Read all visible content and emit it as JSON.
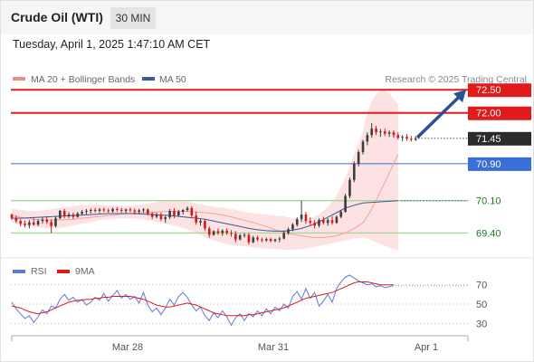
{
  "header": {
    "title": "Crude Oil (WTI)",
    "timeframe": "30 MIN",
    "datetime": "Tuesday, April 1, 2025 1:47:10 AM CET"
  },
  "legend": {
    "items": [
      {
        "label": "MA 20 + Bollinger Bands",
        "color": "#f08c86"
      },
      {
        "label": "MA 50",
        "color": "#3a5b97"
      }
    ],
    "copyright": "Research © 2025 Trading Central"
  },
  "rsi_legend": {
    "items": [
      {
        "label": "RSI",
        "color": "#5b7bd5"
      },
      {
        "label": "9MA",
        "color": "#e01b1b"
      }
    ]
  },
  "colors": {
    "resistance": "#e01b1b",
    "pivot": "#3a6ed8",
    "support": "#a8d5a0",
    "support_text": "#1e7a1e",
    "last_price_bg": "#2b2b2b",
    "candle_up": "#3d3d3d",
    "candle_down": "#d21a1a",
    "bollinger_fill": "#fbd8d8",
    "arrow": "#2a5293"
  },
  "chart_data": [
    {
      "type": "candlestick",
      "title": "Crude Oil (WTI)",
      "timeframe": "30 MIN",
      "x_labels": [
        "Mar 28",
        "Mar 31",
        "Apr 1"
      ],
      "ylim": [
        68.9,
        72.7
      ],
      "price_levels": [
        {
          "value": 72.5,
          "label": "72.50",
          "role": "resistance"
        },
        {
          "value": 72.0,
          "label": "72.00",
          "role": "resistance"
        },
        {
          "value": 71.45,
          "label": "71.45",
          "role": "last"
        },
        {
          "value": 70.9,
          "label": "70.90",
          "role": "pivot"
        },
        {
          "value": 70.1,
          "label": "70.10",
          "role": "support"
        },
        {
          "value": 69.4,
          "label": "69.40",
          "role": "support"
        }
      ],
      "ohlc": [
        [
          69.8,
          69.82,
          69.68,
          69.72
        ],
        [
          69.72,
          69.78,
          69.62,
          69.66
        ],
        [
          69.66,
          69.7,
          69.54,
          69.6
        ],
        [
          69.6,
          69.67,
          69.52,
          69.57
        ],
        [
          69.57,
          69.68,
          69.5,
          69.63
        ],
        [
          69.63,
          69.72,
          69.56,
          69.58
        ],
        [
          69.58,
          69.7,
          69.55,
          69.66
        ],
        [
          69.66,
          69.74,
          69.6,
          69.69
        ],
        [
          69.69,
          69.76,
          69.6,
          69.64
        ],
        [
          69.64,
          69.7,
          69.4,
          69.55
        ],
        [
          69.55,
          69.76,
          69.52,
          69.72
        ],
        [
          69.72,
          69.9,
          69.7,
          69.88
        ],
        [
          69.88,
          69.92,
          69.72,
          69.76
        ],
        [
          69.76,
          69.85,
          69.72,
          69.8
        ],
        [
          69.8,
          69.84,
          69.7,
          69.75
        ],
        [
          69.75,
          69.86,
          69.73,
          69.82
        ],
        [
          69.82,
          69.9,
          69.78,
          69.86
        ],
        [
          69.86,
          69.92,
          69.8,
          69.88
        ],
        [
          69.88,
          69.93,
          69.82,
          69.9
        ],
        [
          69.9,
          69.94,
          69.84,
          69.88
        ],
        [
          69.88,
          69.94,
          69.83,
          69.91
        ],
        [
          69.91,
          69.95,
          69.85,
          69.89
        ],
        [
          69.89,
          69.93,
          69.84,
          69.87
        ],
        [
          69.87,
          69.95,
          69.84,
          69.92
        ],
        [
          69.92,
          69.96,
          69.86,
          69.9
        ],
        [
          69.9,
          69.94,
          69.84,
          69.88
        ],
        [
          69.88,
          69.93,
          69.83,
          69.91
        ],
        [
          69.91,
          69.95,
          69.85,
          69.89
        ],
        [
          69.89,
          69.93,
          69.8,
          69.86
        ],
        [
          69.86,
          69.92,
          69.82,
          69.89
        ],
        [
          69.89,
          69.94,
          69.84,
          69.91
        ],
        [
          69.91,
          69.93,
          69.78,
          69.82
        ],
        [
          69.82,
          69.86,
          69.7,
          69.75
        ],
        [
          69.75,
          69.84,
          69.72,
          69.8
        ],
        [
          69.8,
          69.84,
          69.66,
          69.7
        ],
        [
          69.7,
          69.78,
          69.62,
          69.74
        ],
        [
          69.74,
          69.92,
          69.7,
          69.88
        ],
        [
          69.88,
          69.94,
          69.72,
          69.78
        ],
        [
          69.78,
          69.9,
          69.76,
          69.86
        ],
        [
          69.86,
          69.92,
          69.8,
          69.9
        ],
        [
          69.9,
          69.98,
          69.86,
          69.94
        ],
        [
          69.94,
          69.98,
          69.72,
          69.78
        ],
        [
          69.78,
          69.86,
          69.58,
          69.63
        ],
        [
          69.63,
          69.7,
          69.56,
          69.66
        ],
        [
          69.66,
          69.7,
          69.45,
          69.5
        ],
        [
          69.5,
          69.54,
          69.3,
          69.36
        ],
        [
          69.36,
          69.46,
          69.34,
          69.44
        ],
        [
          69.44,
          69.5,
          69.36,
          69.4
        ],
        [
          69.4,
          69.48,
          69.34,
          69.45
        ],
        [
          69.45,
          69.5,
          69.36,
          69.4
        ],
        [
          69.4,
          69.46,
          69.32,
          69.38
        ],
        [
          69.38,
          69.44,
          69.2,
          69.26
        ],
        [
          69.26,
          69.38,
          69.24,
          69.35
        ],
        [
          69.35,
          69.4,
          69.3,
          69.36
        ],
        [
          69.36,
          69.4,
          69.15,
          69.2
        ],
        [
          69.2,
          69.34,
          69.18,
          69.3
        ],
        [
          69.3,
          69.34,
          69.22,
          69.26
        ],
        [
          69.26,
          69.3,
          69.2,
          69.24
        ],
        [
          69.24,
          69.3,
          69.21,
          69.27
        ],
        [
          69.27,
          69.3,
          69.2,
          69.23
        ],
        [
          69.23,
          69.28,
          69.2,
          69.26
        ],
        [
          69.26,
          69.32,
          69.2,
          69.28
        ],
        [
          69.28,
          69.44,
          69.26,
          69.4
        ],
        [
          69.4,
          69.52,
          69.36,
          69.48
        ],
        [
          69.48,
          69.62,
          69.44,
          69.58
        ],
        [
          69.58,
          69.74,
          69.54,
          69.7
        ],
        [
          69.7,
          70.1,
          69.64,
          69.8
        ],
        [
          69.8,
          69.86,
          69.6,
          69.66
        ],
        [
          69.66,
          69.74,
          69.56,
          69.62
        ],
        [
          69.62,
          69.68,
          69.5,
          69.56
        ],
        [
          69.56,
          69.72,
          69.52,
          69.68
        ],
        [
          69.68,
          69.75,
          69.58,
          69.62
        ],
        [
          69.62,
          69.72,
          69.56,
          69.68
        ],
        [
          69.68,
          69.76,
          69.58,
          69.62
        ],
        [
          69.62,
          69.78,
          69.6,
          69.75
        ],
        [
          69.75,
          69.9,
          69.72,
          69.86
        ],
        [
          69.86,
          70.25,
          69.84,
          70.2
        ],
        [
          70.2,
          70.6,
          70.15,
          70.55
        ],
        [
          70.55,
          70.95,
          70.5,
          70.9
        ],
        [
          70.9,
          71.2,
          70.84,
          71.15
        ],
        [
          71.15,
          71.42,
          71.1,
          71.38
        ],
        [
          71.38,
          71.58,
          71.3,
          71.52
        ],
        [
          71.52,
          71.78,
          71.46,
          71.66
        ],
        [
          71.66,
          71.72,
          71.52,
          71.58
        ],
        [
          71.58,
          71.65,
          71.48,
          71.6
        ],
        [
          71.6,
          71.66,
          71.5,
          71.55
        ],
        [
          71.55,
          71.62,
          71.48,
          71.58
        ],
        [
          71.58,
          71.62,
          71.46,
          71.52
        ],
        [
          71.52,
          71.58,
          71.42,
          71.46
        ],
        [
          71.46,
          71.52,
          71.38,
          71.48
        ],
        [
          71.48,
          71.54,
          71.4,
          71.44
        ],
        [
          71.44,
          71.5,
          71.38,
          71.42
        ],
        [
          71.42,
          71.5,
          71.39,
          71.45
        ]
      ],
      "ma20": [
        69.78,
        69.74,
        69.71,
        69.69,
        69.68,
        69.68,
        69.69,
        69.7,
        69.72,
        69.74,
        69.76,
        69.78,
        69.8,
        69.82,
        69.83,
        69.84,
        69.85,
        69.86,
        69.87,
        69.87,
        69.87,
        69.86,
        69.84,
        69.82,
        69.79,
        69.75,
        69.7,
        69.65,
        69.6,
        69.54,
        69.47,
        69.42,
        69.37,
        69.34,
        69.31,
        69.3,
        69.31,
        69.34,
        69.4,
        69.5,
        69.62,
        69.76,
        69.92,
        70.1,
        70.3,
        70.5,
        70.7,
        70.9,
        71.1
      ],
      "ma20_x": [
        0,
        2,
        4,
        6,
        8,
        10,
        12,
        14,
        16,
        18,
        20,
        22,
        24,
        26,
        28,
        30,
        32,
        34,
        36,
        38,
        40,
        42,
        44,
        46,
        48,
        50,
        52,
        54,
        56,
        58,
        60,
        62,
        64,
        66,
        68,
        70,
        72,
        74,
        76,
        78,
        80,
        81,
        82,
        83,
        84,
        85,
        86,
        87,
        88
      ],
      "bollinger_upper": [
        69.92,
        69.9,
        69.88,
        69.88,
        69.9,
        69.93,
        69.96,
        69.98,
        70.0,
        70.01,
        70.01,
        70.0,
        69.99,
        69.99,
        70.0,
        70.02,
        70.05,
        70.08,
        70.1,
        70.1,
        70.08,
        70.04,
        70.0,
        69.97,
        69.95,
        69.92,
        69.88,
        69.84,
        69.82,
        69.8,
        69.78,
        69.76,
        69.72,
        69.7,
        69.72,
        69.8,
        69.96,
        70.2,
        70.6,
        71.1,
        71.6,
        72.0,
        72.25,
        72.4,
        72.48,
        72.48,
        72.42,
        72.3,
        72.2
      ],
      "bollinger_lower": [
        69.62,
        69.58,
        69.55,
        69.52,
        69.5,
        69.5,
        69.52,
        69.56,
        69.6,
        69.64,
        69.68,
        69.7,
        69.71,
        69.72,
        69.72,
        69.7,
        69.66,
        69.62,
        69.58,
        69.54,
        69.48,
        69.4,
        69.32,
        69.24,
        69.18,
        69.14,
        69.12,
        69.1,
        69.08,
        69.06,
        69.05,
        69.04,
        69.04,
        69.05,
        69.08,
        69.12,
        69.16,
        69.2,
        69.24,
        69.28,
        69.3,
        69.28,
        69.24,
        69.2,
        69.16,
        69.12,
        69.08,
        69.05,
        69.02
      ],
      "ma50": [
        69.72,
        69.72,
        69.73,
        69.74,
        69.75,
        69.76,
        69.77,
        69.78,
        69.79,
        69.8,
        69.81,
        69.82,
        69.82,
        69.82,
        69.82,
        69.81,
        69.8,
        69.79,
        69.78,
        69.76,
        69.74,
        69.72,
        69.7,
        69.66,
        69.62,
        69.58,
        69.54,
        69.5,
        69.47,
        69.45,
        69.44,
        69.44,
        69.46,
        69.5,
        69.56,
        69.64,
        69.74,
        69.84,
        69.94,
        70.0,
        70.05,
        70.1
      ],
      "ma50_x": [
        0,
        2,
        4,
        6,
        8,
        10,
        12,
        14,
        16,
        18,
        20,
        22,
        24,
        26,
        28,
        30,
        32,
        34,
        36,
        38,
        40,
        42,
        44,
        46,
        48,
        50,
        52,
        54,
        56,
        58,
        60,
        62,
        64,
        66,
        68,
        70,
        72,
        74,
        76,
        78,
        80,
        88
      ]
    },
    {
      "type": "line",
      "title": "RSI",
      "ylim": [
        20,
        80
      ],
      "y_ticks": [
        70,
        50,
        30
      ],
      "series": [
        {
          "name": "RSI",
          "values": [
            52,
            45,
            40,
            35,
            38,
            31,
            37,
            44,
            40,
            48,
            46,
            55,
            60,
            54,
            57,
            52,
            55,
            49,
            52,
            57,
            54,
            61,
            53,
            59,
            64,
            56,
            60,
            55,
            58,
            51,
            62,
            49,
            42,
            46,
            39,
            46,
            55,
            49,
            58,
            62,
            57,
            49,
            43,
            47,
            38,
            33,
            41,
            36,
            43,
            37,
            28,
            36,
            40,
            33,
            40,
            37,
            43,
            38,
            45,
            40,
            47,
            43,
            50,
            46,
            58,
            63,
            55,
            66,
            56,
            62,
            48,
            53,
            60,
            52,
            66,
            73,
            78,
            80,
            77,
            74,
            72,
            70,
            71,
            68,
            69,
            67,
            68,
            69
          ]
        },
        {
          "name": "9MA",
          "values": [
            48,
            47,
            46,
            44,
            42,
            41,
            40,
            41,
            42,
            44,
            46,
            48,
            50,
            52,
            53,
            54,
            54,
            55,
            55,
            56,
            56,
            57,
            57,
            58,
            58,
            58,
            58,
            58,
            57,
            56,
            55,
            53,
            51,
            49,
            48,
            47,
            47,
            48,
            49,
            50,
            51,
            50,
            49,
            47,
            45,
            43,
            41,
            40,
            39,
            38,
            38,
            38,
            38,
            38,
            39,
            39,
            40,
            41,
            42,
            43,
            44,
            45,
            46,
            48,
            50,
            52,
            54,
            56,
            57,
            58,
            59,
            60,
            61,
            62,
            64,
            66,
            68,
            70,
            72,
            73,
            73,
            73,
            72,
            71,
            70,
            70,
            70,
            70
          ]
        }
      ]
    }
  ]
}
